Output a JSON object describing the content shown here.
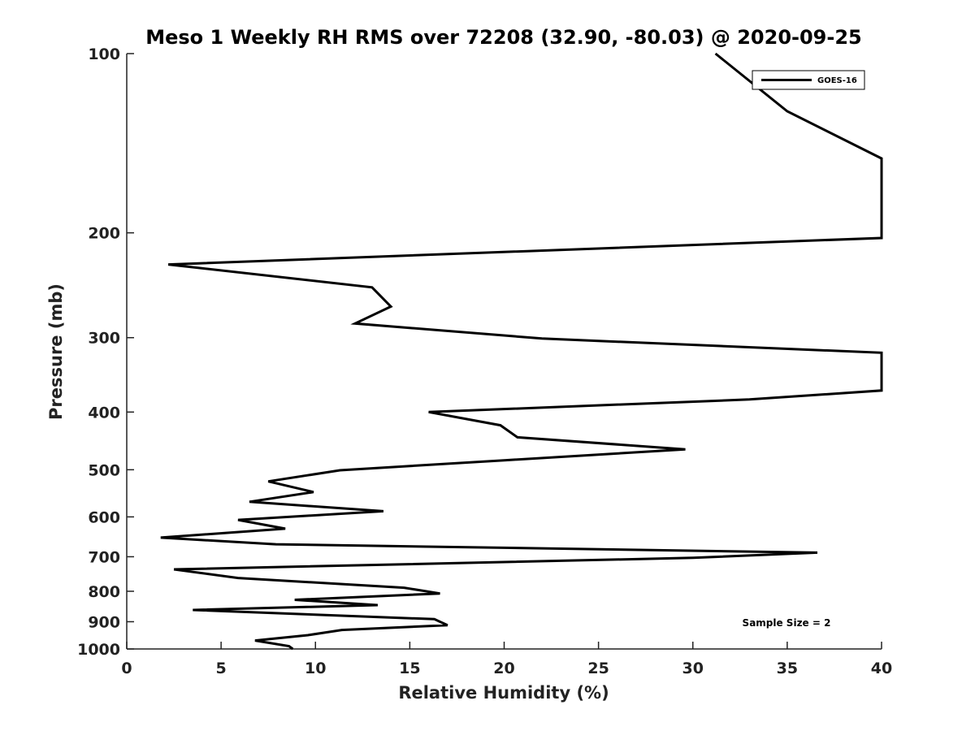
{
  "chart_data": {
    "type": "line",
    "title": "Meso 1 Weekly RH RMS over 72208 (32.90, -80.03) @ 2020-09-25",
    "xlabel": "Relative Humidity (%)",
    "ylabel": "Pressure (mb)",
    "xlim": [
      0,
      40
    ],
    "ylim": [
      100,
      1000
    ],
    "yscale": "log",
    "yreversed": true,
    "xticks": [
      0,
      5,
      10,
      15,
      20,
      25,
      30,
      35,
      40
    ],
    "yticks": [
      100,
      200,
      300,
      400,
      500,
      600,
      700,
      800,
      900,
      1000
    ],
    "grid": false,
    "legend_position": "top-right",
    "annotation": "Sample Size = 2",
    "series": [
      {
        "name": "GOES-16",
        "color": "#000000",
        "points": [
          [
            31.2,
            100
          ],
          [
            35.0,
            125
          ],
          [
            40.0,
            150
          ],
          [
            40.0,
            204
          ],
          [
            2.2,
            226
          ],
          [
            13.0,
            247
          ],
          [
            14.0,
            266
          ],
          [
            12.1,
            284
          ],
          [
            22.0,
            301
          ],
          [
            40.0,
            318
          ],
          [
            40.0,
            368
          ],
          [
            33.0,
            381
          ],
          [
            16.0,
            400
          ],
          [
            19.8,
            421
          ],
          [
            20.7,
            441
          ],
          [
            29.6,
            462
          ],
          [
            20.0,
            482
          ],
          [
            11.3,
            501
          ],
          [
            7.5,
            523
          ],
          [
            9.9,
            545
          ],
          [
            6.5,
            566
          ],
          [
            13.6,
            587
          ],
          [
            5.9,
            607
          ],
          [
            8.4,
            628
          ],
          [
            1.8,
            650
          ],
          [
            7.9,
            667
          ],
          [
            36.6,
            689
          ],
          [
            30.0,
            703
          ],
          [
            2.5,
            735
          ],
          [
            5.9,
            760
          ],
          [
            14.7,
            789
          ],
          [
            16.6,
            807
          ],
          [
            8.9,
            827
          ],
          [
            13.3,
            844
          ],
          [
            3.5,
            860
          ],
          [
            16.3,
            891
          ],
          [
            17.0,
            912
          ],
          [
            11.4,
            929
          ],
          [
            9.6,
            948
          ],
          [
            6.8,
            968
          ],
          [
            8.6,
            989
          ],
          [
            8.8,
            1000
          ]
        ]
      }
    ]
  }
}
